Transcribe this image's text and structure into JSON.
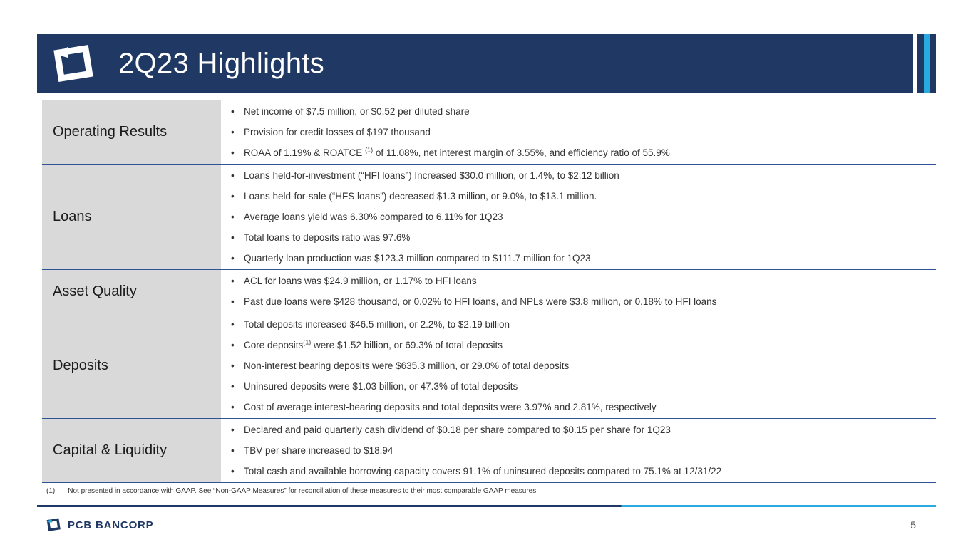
{
  "slide": {
    "title": "2Q23 Highlights",
    "page_number": "5",
    "brand": "PCB BANCORP"
  },
  "footnote": {
    "marker": "(1)",
    "text": "Not presented in accordance with GAAP. See “Non-GAAP Measures” for reconciliation of these measures to their most comparable GAAP measures"
  },
  "table": {
    "rows": [
      {
        "category": "Operating Results",
        "bullets": [
          "Net income of $7.5 million, or $0.52 per diluted share",
          "Provision for credit losses of $197 thousand",
          [
            {
              "t": "ROAA of 1.19% & ROATCE "
            },
            {
              "t": "(1)",
              "sup": true
            },
            {
              "t": " of 11.08%, net interest margin of 3.55%, and efficiency ratio of 55.9%"
            }
          ]
        ]
      },
      {
        "category": "Loans",
        "bullets": [
          "Loans held-for-investment (“HFI loans”) Increased $30.0 million, or 1.4%, to $2.12 billion",
          "Loans held-for-sale (“HFS loans”) decreased $1.3 million, or 9.0%, to $13.1 million.",
          "Average loans yield was 6.30% compared to 6.11% for 1Q23",
          "Total loans to deposits ratio was 97.6%",
          "Quarterly loan production was $123.3 million compared to $111.7 million for 1Q23"
        ]
      },
      {
        "category": "Asset Quality",
        "bullets": [
          "ACL for loans was $24.9 million, or 1.17% to HFI loans",
          "Past due loans were $428 thousand, or 0.02% to HFI loans, and NPLs were $3.8 million, or 0.18% to HFI loans"
        ]
      },
      {
        "category": "Deposits",
        "bullets": [
          "Total deposits increased $46.5 million, or 2.2%, to $2.19 billion",
          [
            {
              "t": "Core deposits"
            },
            {
              "t": "(1)",
              "sup": true
            },
            {
              "t": " were $1.52 billion, or 69.3% of total deposits"
            }
          ],
          "Non-interest bearing deposits were $635.3 million, or 29.0% of total deposits",
          "Uninsured deposits were $1.03 billion, or 47.3% of total deposits",
          "Cost of average interest-bearing deposits and total deposits were 3.97% and 2.81%, respectively"
        ]
      },
      {
        "category": "Capital & Liquidity",
        "bullets": [
          "Declared and paid quarterly cash dividend of $0.18 per share compared to $0.15 per share for 1Q23",
          "TBV per share increased to $18.94",
          "Total cash and available borrowing capacity covers 91.1% of uninsured deposits compared to 75.1% at 12/31/22"
        ]
      }
    ]
  },
  "colors": {
    "header_bg": "#1F3864",
    "accent_cyan": "#29ABE2",
    "category_bg": "#D9D9D9",
    "divider": "#2F5496"
  }
}
